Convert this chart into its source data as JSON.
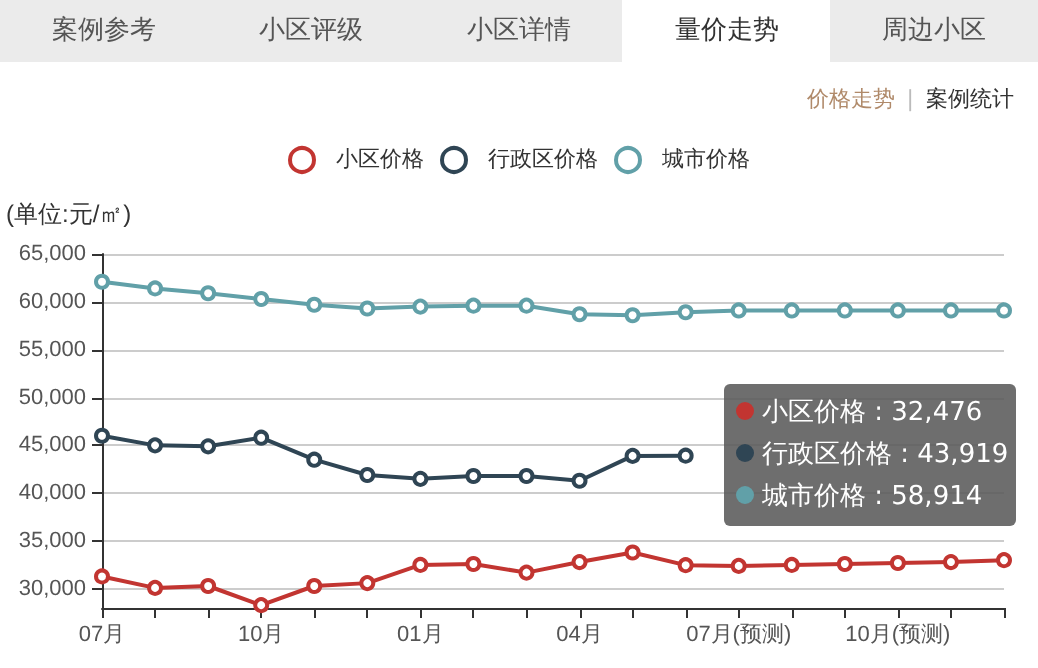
{
  "chart_data": {
    "type": "line",
    "ylabel": "(单位:元/㎡)",
    "categories": [
      "07月",
      null,
      null,
      "10月",
      null,
      null,
      "01月",
      null,
      null,
      "04月",
      null,
      null,
      "07月(预测)",
      null,
      null,
      "10月(预测)",
      null,
      null
    ],
    "series": [
      {
        "name": "小区价格",
        "color": "#c23531",
        "values": [
          31300,
          30100,
          30300,
          28300,
          30300,
          30600,
          32500,
          32600,
          31700,
          32800,
          33800,
          32476,
          32400,
          32500,
          32600,
          32700,
          32800,
          33000
        ]
      },
      {
        "name": "行政区价格",
        "color": "#2f4554",
        "values": [
          46000,
          45000,
          44900,
          45800,
          43500,
          41900,
          41500,
          41800,
          41800,
          41300,
          43900,
          43919,
          null,
          null,
          null,
          null,
          null,
          null
        ]
      },
      {
        "name": "城市价格",
        "color": "#61a0a8",
        "values": [
          62100,
          61400,
          60900,
          60300,
          59700,
          59300,
          59500,
          59600,
          59600,
          58700,
          58600,
          58914,
          59100,
          59100,
          59100,
          59100,
          59100,
          59100
        ]
      }
    ],
    "ylim": [
      28000,
      65000
    ],
    "yticks": [
      {
        "value": 30000,
        "label": "30,000"
      },
      {
        "value": 35000,
        "label": "35,000"
      },
      {
        "value": 40000,
        "label": "40,000"
      },
      {
        "value": 45000,
        "label": "45,000"
      },
      {
        "value": 50000,
        "label": "50,000"
      },
      {
        "value": 55000,
        "label": "55,000"
      },
      {
        "value": 60000,
        "label": "60,000"
      },
      {
        "value": 65000,
        "label": "65,000"
      }
    ],
    "grid": "y",
    "legend": "top",
    "marker": "circle",
    "line_style": "solid",
    "annotations": [
      "案例参考",
      "小区评级",
      "小区详情",
      "量价走势",
      "周边小区",
      "价格走势",
      "|",
      "案例统计",
      "小区价格 : 32,476",
      "行政区价格 : 43,919",
      "城市价格 : 58,914"
    ]
  }
}
